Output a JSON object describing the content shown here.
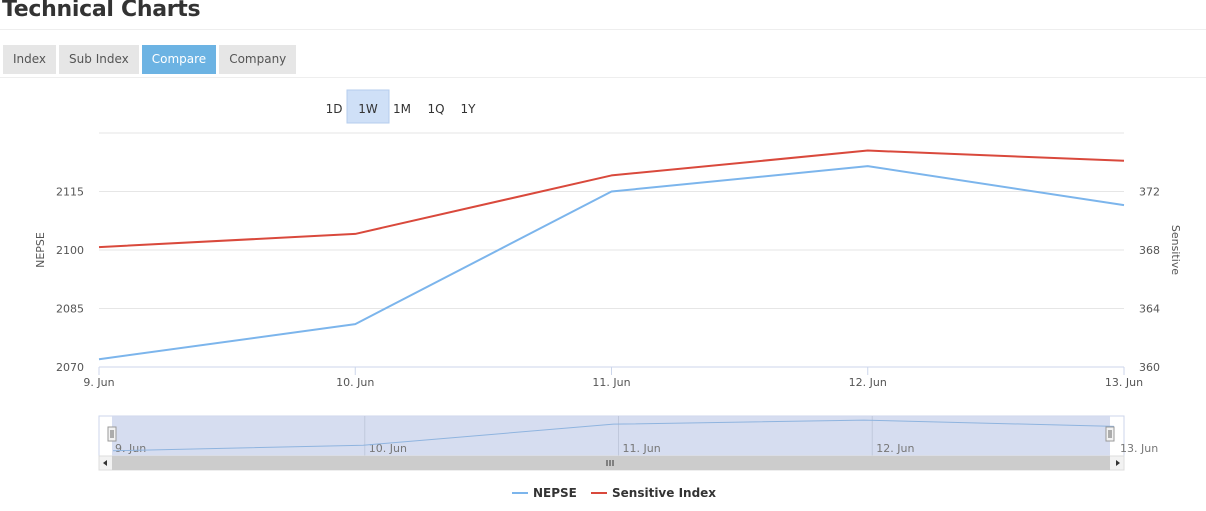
{
  "page": {
    "title": "Technical Charts"
  },
  "tabs": [
    {
      "label": "Index",
      "active": false
    },
    {
      "label": "Sub Index",
      "active": false
    },
    {
      "label": "Compare",
      "active": true
    },
    {
      "label": "Company",
      "active": false
    }
  ],
  "range_selector": {
    "buttons": [
      "1D",
      "1W",
      "1M",
      "1Q",
      "1Y"
    ],
    "selected": "1W"
  },
  "colors": {
    "nepse": "#7cb5ec",
    "sensitive": "#d9493c",
    "tab_active": "#6cb3e3",
    "range_selected": "#cfe0f7",
    "navigator_mask": "#d2d9ee"
  },
  "chart_data": {
    "type": "line",
    "categories": [
      "9. Jun",
      "10. Jun",
      "11. Jun",
      "12. Jun",
      "13. Jun"
    ],
    "series": [
      {
        "name": "NEPSE",
        "axis": "left",
        "values": [
          2072,
          2081,
          2115,
          2121.5,
          2111.5
        ]
      },
      {
        "name": "Sensitive Index",
        "axis": "right",
        "values": [
          368.2,
          369.1,
          373.1,
          374.8,
          374.1
        ]
      }
    ],
    "y_left": {
      "label": "NEPSE",
      "ticks": [
        2070,
        2085,
        2100,
        2115
      ],
      "range": [
        2070,
        2130
      ]
    },
    "y_right": {
      "label": "Sensitive",
      "ticks": [
        360,
        364,
        368,
        372
      ],
      "range": [
        360,
        376
      ]
    },
    "grid": true,
    "legend": "bottom-center",
    "navigator": {
      "labels": [
        "9. Jun",
        "10. Jun",
        "11. Jun",
        "12. Jun",
        "13. Jun"
      ]
    }
  }
}
